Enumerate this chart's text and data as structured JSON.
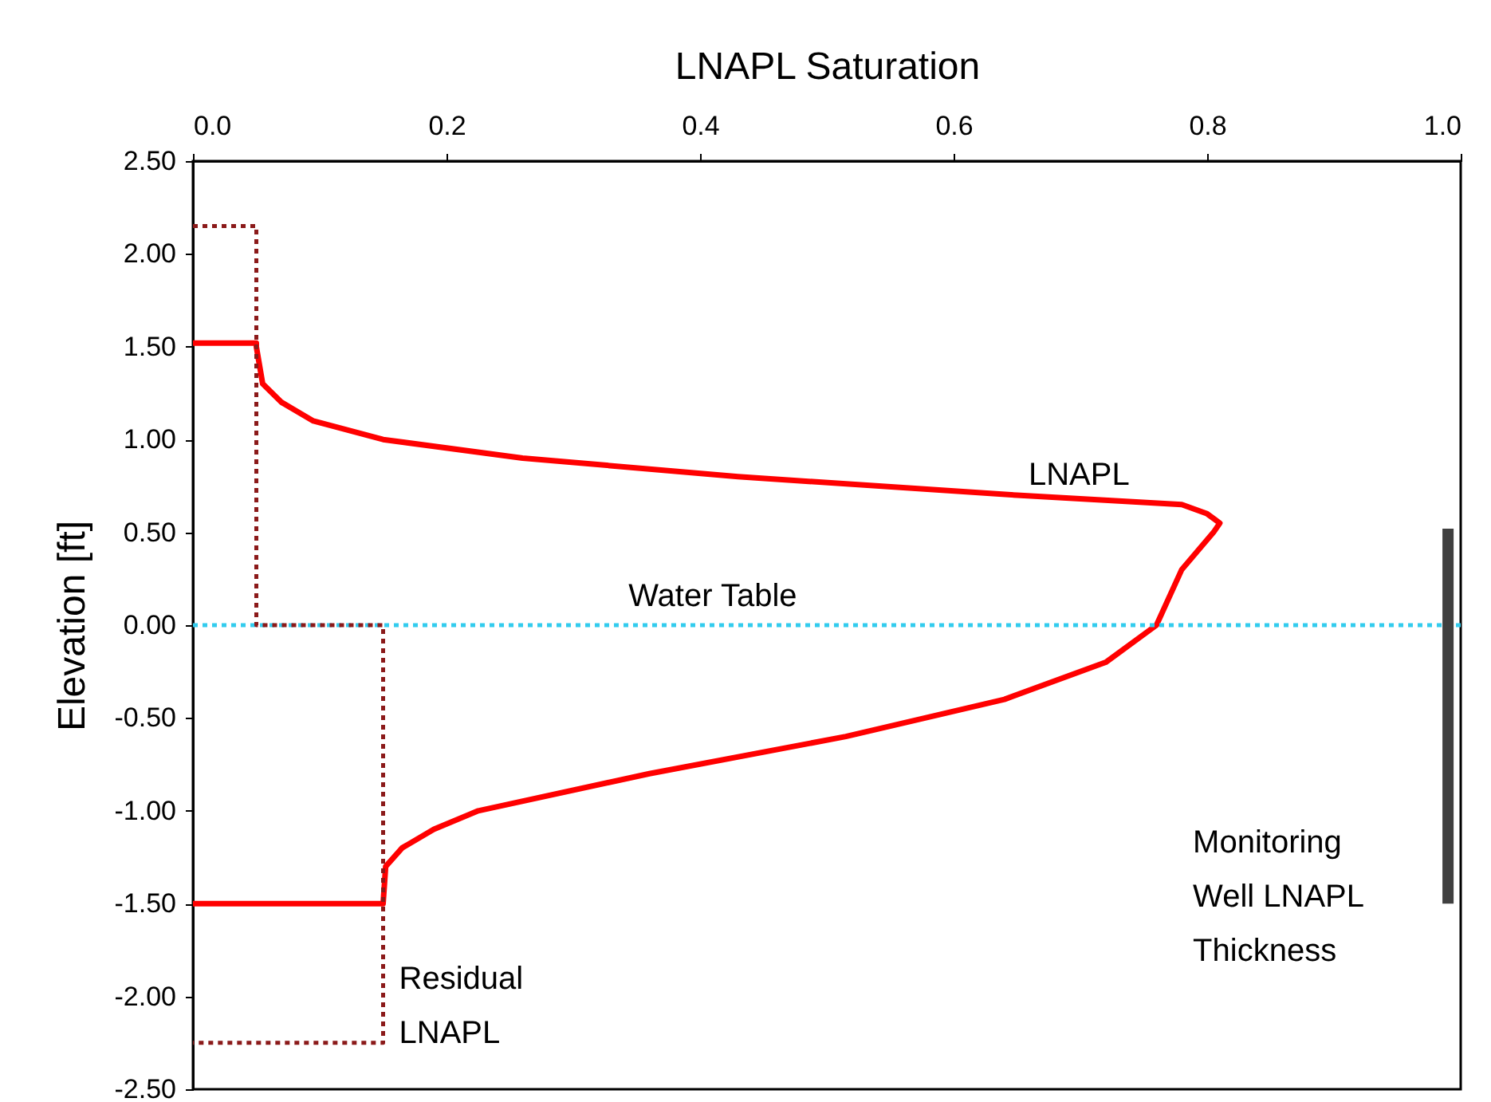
{
  "chart_data": {
    "type": "line",
    "xlabel": "LNAPL Saturation",
    "ylabel": "Elevation [ft]",
    "xlim": [
      0,
      1
    ],
    "xticks": [
      {
        "value": 0,
        "label": "0.0"
      },
      {
        "value": 0.2,
        "label": "0.2"
      },
      {
        "value": 0.4,
        "label": "0.4"
      },
      {
        "value": 0.6,
        "label": "0.6"
      },
      {
        "value": 0.8,
        "label": "0.8"
      },
      {
        "value": 1,
        "label": "1.0"
      }
    ],
    "ylim": [
      -2.5,
      2.5
    ],
    "yticks": [
      {
        "value": 2.5,
        "label": "2.50"
      },
      {
        "value": 2,
        "label": "2.00"
      },
      {
        "value": 1.5,
        "label": "1.50"
      },
      {
        "value": 1,
        "label": "1.00"
      },
      {
        "value": 0.5,
        "label": "0.50"
      },
      {
        "value": 0,
        "label": "0.00"
      },
      {
        "value": -0.5,
        "label": "-0.50"
      },
      {
        "value": -1,
        "label": "-1.00"
      },
      {
        "value": -1.5,
        "label": "-1.50"
      },
      {
        "value": -2,
        "label": "-2.00"
      },
      {
        "value": -2.5,
        "label": "-2.50"
      }
    ],
    "grid": false,
    "marker": "none",
    "series": [
      {
        "name": "LNAPL",
        "color": "#ff0000",
        "line_style": "solid",
        "x": [
          0,
          0.05,
          0.05,
          0.055,
          0.07,
          0.095,
          0.15,
          0.26,
          0.43,
          0.65,
          0.78,
          0.8,
          0.81,
          0.805,
          0.78,
          0.76,
          0.72,
          0.64,
          0.515,
          0.36,
          0.225,
          0.19,
          0.165,
          0.152,
          0.15,
          0
        ],
        "values": [
          1.52,
          1.52,
          1.5,
          1.3,
          1.2,
          1.1,
          1.0,
          0.9,
          0.8,
          0.7,
          0.65,
          0.6,
          0.55,
          0.5,
          0.3,
          0,
          -0.2,
          -0.4,
          -0.6,
          -0.8,
          -1.0,
          -1.1,
          -1.2,
          -1.3,
          -1.5,
          -1.5
        ]
      },
      {
        "name": "Residual LNAPL",
        "color": "#8b1a1a",
        "line_style": "dotted",
        "x": [
          0,
          0.05,
          0.05,
          0.15,
          0.15,
          0
        ],
        "values": [
          2.15,
          2.15,
          0,
          0,
          -2.25,
          -2.25
        ]
      },
      {
        "name": "Monitoring Well LNAPL Thickness",
        "color": "#404040",
        "line_style": "solid",
        "x": [
          0.99,
          0.99
        ],
        "values": [
          0.52,
          -1.5
        ]
      }
    ],
    "ref_lines": [
      {
        "axis": "y",
        "value": 0,
        "label": "Water Table",
        "color": "#33ccee",
        "line_style": "dotted"
      }
    ]
  }
}
